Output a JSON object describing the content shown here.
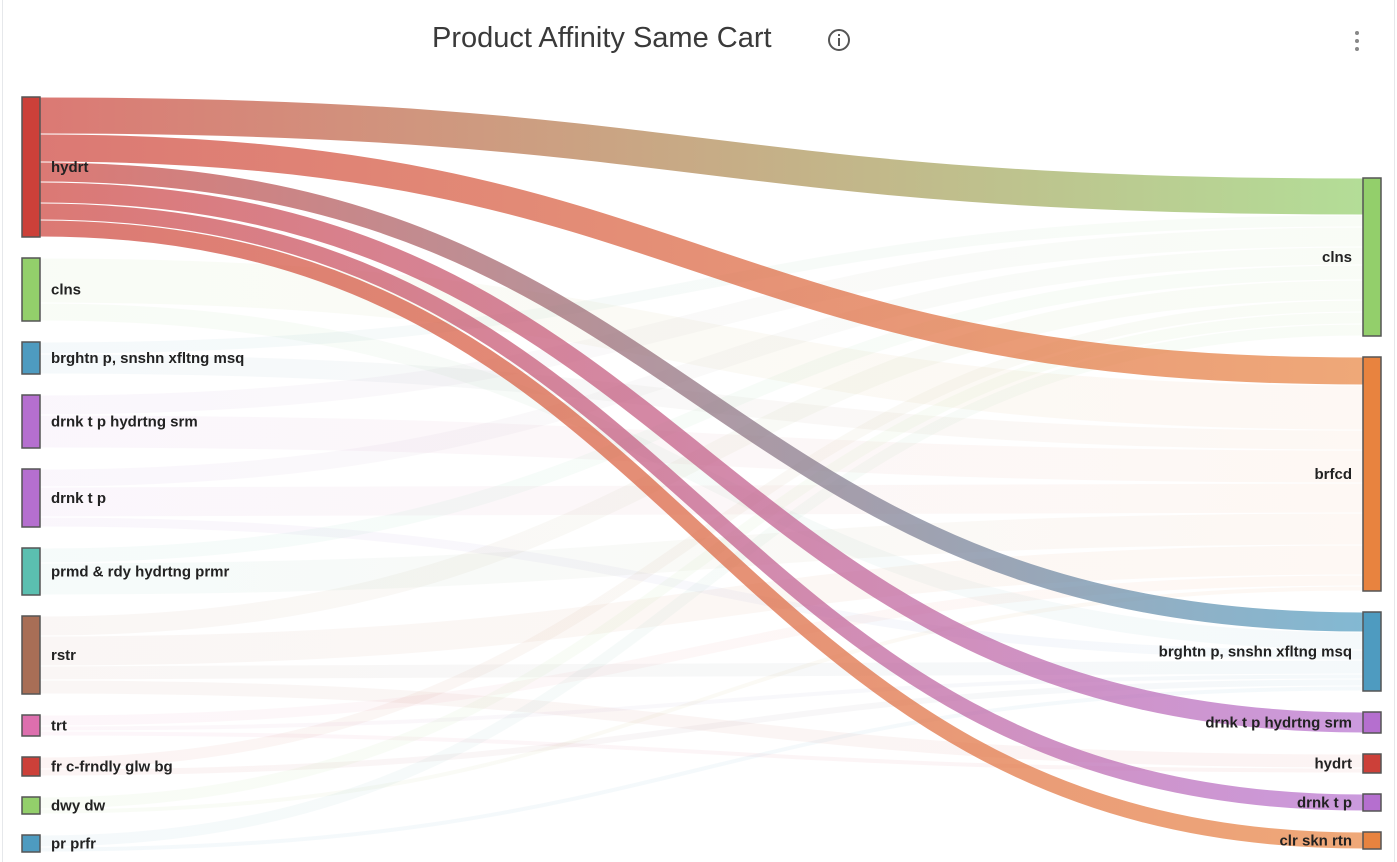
{
  "header": {
    "title": "Product Affinity Same Cart",
    "info_icon": "info-icon",
    "menu_icon": "kebab-menu-icon"
  },
  "chart_data": {
    "type": "sankey",
    "title": "Product Affinity Same Cart",
    "highlighted_source": "hydrt",
    "sources": [
      {
        "name": "hydrt",
        "color": "#cc4039"
      },
      {
        "name": "clns",
        "color": "#93cf6b"
      },
      {
        "name": "brghtn p, snshn xfltng msq",
        "color": "#4e9bc0"
      },
      {
        "name": "drnk t p hydrtng srm",
        "color": "#b56fcf"
      },
      {
        "name": "drnk t p",
        "color": "#b56fcf"
      },
      {
        "name": "prmd & rdy hydrtng prmr",
        "color": "#5bbfb0"
      },
      {
        "name": "rstr",
        "color": "#a86e56"
      },
      {
        "name": "trt",
        "color": "#dd6fae"
      },
      {
        "name": "fr c-frndly glw bg",
        "color": "#cc4039"
      },
      {
        "name": "dwy dw",
        "color": "#93cf6b"
      },
      {
        "name": "pr prfr",
        "color": "#4e9bc0"
      }
    ],
    "targets": [
      {
        "name": "clns",
        "color": "#93cf6b"
      },
      {
        "name": "brfcd",
        "color": "#e8833f"
      },
      {
        "name": "brghtn p, snshn xfltng msq",
        "color": "#4e9bc0"
      },
      {
        "name": "drnk t p hydrtng srm",
        "color": "#b56fcf"
      },
      {
        "name": "hydrt",
        "color": "#cc4039"
      },
      {
        "name": "drnk t p",
        "color": "#b56fcf"
      },
      {
        "name": "clr skn rtn",
        "color": "#e8833f"
      }
    ],
    "links": [
      [
        0,
        0,
        37
      ],
      [
        0,
        1,
        28
      ],
      [
        0,
        2,
        20
      ],
      [
        0,
        3,
        21
      ],
      [
        0,
        5,
        17
      ],
      [
        0,
        6,
        17
      ],
      [
        1,
        1,
        45
      ],
      [
        1,
        2,
        18
      ],
      [
        2,
        0,
        12
      ],
      [
        2,
        1,
        20
      ],
      [
        3,
        0,
        20
      ],
      [
        3,
        1,
        33
      ],
      [
        4,
        0,
        18
      ],
      [
        4,
        1,
        30
      ],
      [
        4,
        2,
        10
      ],
      [
        5,
        0,
        15
      ],
      [
        5,
        1,
        32
      ],
      [
        6,
        0,
        20
      ],
      [
        6,
        1,
        30
      ],
      [
        6,
        2,
        14
      ],
      [
        6,
        4,
        14
      ],
      [
        7,
        1,
        11
      ],
      [
        7,
        2,
        5
      ],
      [
        7,
        4,
        5
      ],
      [
        8,
        0,
        12
      ],
      [
        8,
        2,
        7
      ],
      [
        9,
        0,
        12
      ],
      [
        9,
        1,
        5
      ],
      [
        10,
        0,
        12
      ],
      [
        10,
        2,
        5
      ]
    ]
  }
}
